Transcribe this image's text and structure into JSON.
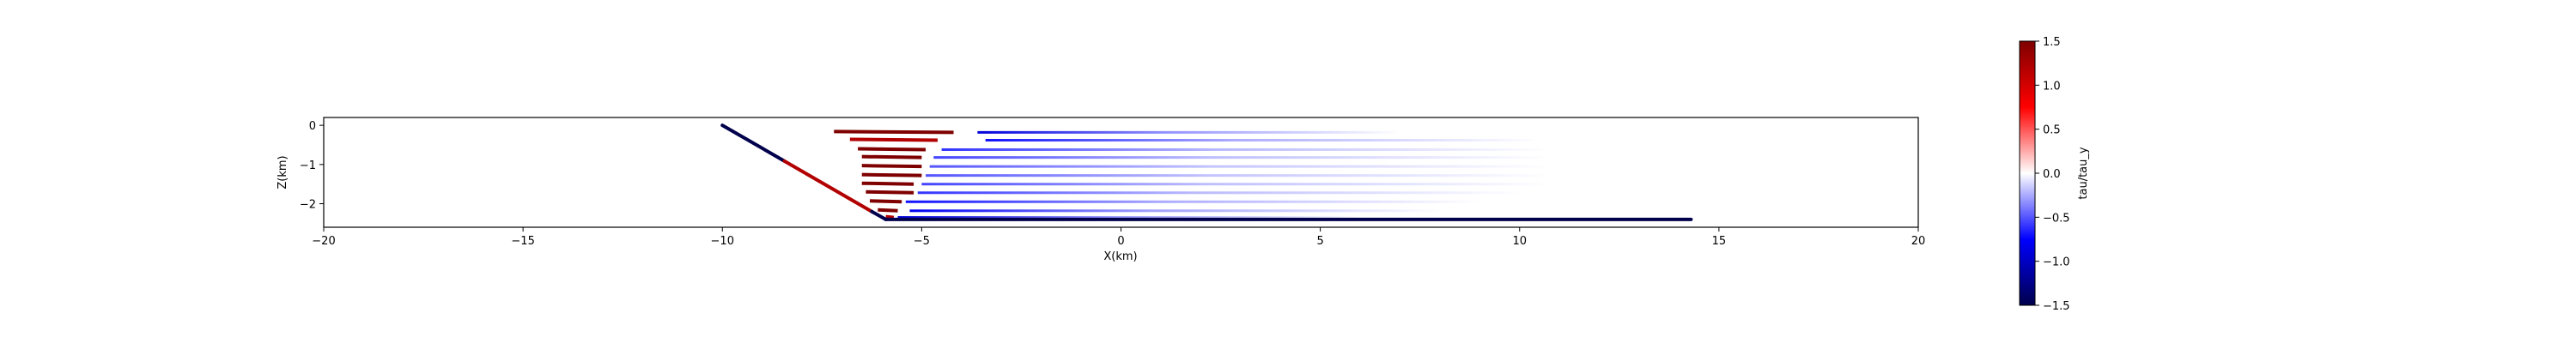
{
  "chart_data": [
    {
      "type": "scatter",
      "title": "",
      "xlabel": "X(km)",
      "ylabel": "Z(km)",
      "xlim": [
        -20,
        20
      ],
      "ylim": [
        -2.6,
        0.2
      ],
      "xticks": [
        -20,
        -15,
        -10,
        -5,
        0,
        5,
        10,
        15,
        20
      ],
      "yticks": [
        0,
        -1,
        -2
      ],
      "xtick_labels": [
        "−20",
        "−15",
        "−10",
        "−5",
        "0",
        "5",
        "10",
        "15",
        "20"
      ],
      "ytick_labels": [
        "0",
        "−1",
        "−2"
      ],
      "grid": false,
      "fault": {
        "name": "",
        "ramp_x": [
          -10,
          -5.9
        ],
        "ramp_z": [
          0,
          -2.4
        ],
        "flat_x": [
          -5.9,
          14.3
        ],
        "flat_z": [
          -2.4,
          -2.4
        ],
        "ramp_values_upper": -1.5,
        "ramp_values_lower": 1.2,
        "flat_value": -1.5
      },
      "layers": [
        {
          "z": -0.18,
          "hw_x": [
            -7.2,
            -4.2
          ],
          "hw_value": 1.5,
          "fw_x": [
            -3.6,
            7.0
          ],
          "fw_value": -0.9
        },
        {
          "z": -0.38,
          "hw_x": [
            -6.8,
            -4.6
          ],
          "hw_value": 1.2,
          "fw_x": [
            -3.4,
            10.5
          ],
          "fw_value": -0.7
        },
        {
          "z": -0.62,
          "hw_x": [
            -6.6,
            -4.9
          ],
          "hw_value": 1.5,
          "fw_x": [
            -4.5,
            10.8
          ],
          "fw_value": -0.6
        },
        {
          "z": -0.82,
          "hw_x": [
            -6.5,
            -5.0
          ],
          "hw_value": 1.5,
          "fw_x": [
            -4.7,
            10.8
          ],
          "fw_value": -0.55
        },
        {
          "z": -1.05,
          "hw_x": [
            -6.5,
            -5.0
          ],
          "hw_value": 1.5,
          "fw_x": [
            -4.8,
            10.8
          ],
          "fw_value": -0.5
        },
        {
          "z": -1.28,
          "hw_x": [
            -6.5,
            -5.0
          ],
          "hw_value": 1.5,
          "fw_x": [
            -4.9,
            10.8
          ],
          "fw_value": -0.5
        },
        {
          "z": -1.5,
          "hw_x": [
            -6.5,
            -5.2
          ],
          "hw_value": 1.5,
          "fw_x": [
            -5.0,
            10.8
          ],
          "fw_value": -0.55
        },
        {
          "z": -1.72,
          "hw_x": [
            -6.4,
            -5.2
          ],
          "hw_value": 1.5,
          "fw_x": [
            -5.1,
            10.0
          ],
          "fw_value": -0.6
        },
        {
          "z": -1.95,
          "hw_x": [
            -6.3,
            -5.5
          ],
          "hw_value": 1.5,
          "fw_x": [
            -5.4,
            9.0
          ],
          "fw_value": -0.7
        },
        {
          "z": -2.18,
          "hw_x": [
            -6.1,
            -5.6
          ],
          "hw_value": 1.5,
          "fw_x": [
            -5.3,
            8.0
          ],
          "fw_value": -0.8
        },
        {
          "z": -2.35,
          "hw_x": [
            -5.9,
            -5.7
          ],
          "hw_value": 1.2,
          "fw_x": [
            -5.6,
            6.0
          ],
          "fw_value": -0.9
        }
      ],
      "colorbar": {
        "label": "tau/tau_y",
        "colormap": "seismic",
        "range": [
          -1.5,
          1.5
        ],
        "ticks": [
          1.5,
          1.0,
          0.5,
          0.0,
          -0.5,
          -1.0,
          -1.5
        ],
        "tick_labels": [
          "1.5",
          "1.0",
          "0.5",
          "0.0",
          "−0.5",
          "−1.0",
          "−1.5"
        ]
      }
    }
  ]
}
